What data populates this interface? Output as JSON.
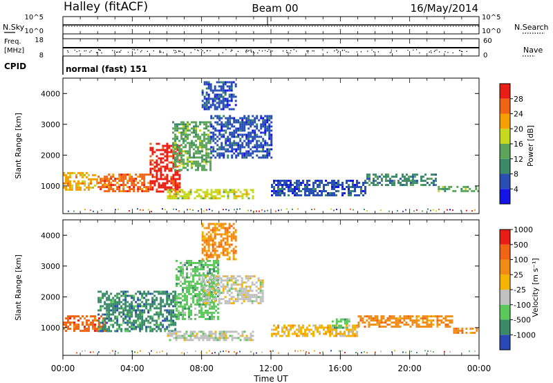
{
  "header": {
    "station": "Halley (fitACF)",
    "beam": "Beam 00",
    "date": "16/May/2014"
  },
  "side_labels": {
    "nsky": "N.Sky",
    "nsearch": "N.Search",
    "freq_line1": "Freq.",
    "freq_line2": "[MHz]",
    "nave": "Nave",
    "cpid": "CPID"
  },
  "cpid_text": "normal (fast) 151",
  "colors": {
    "power": [
      "#1414e6",
      "#2a4fb4",
      "#3a8a6a",
      "#5aa55a",
      "#c6d81e",
      "#f5a000",
      "#f06414",
      "#e81e14"
    ],
    "velocity": [
      "#2848b4",
      "#3a8a6a",
      "#5ac85a",
      "#c0c0c0",
      "#f5b400",
      "#f08c14",
      "#f06414",
      "#e81e14"
    ]
  },
  "chart_data": [
    {
      "type": "line",
      "name": "nsky-nsearch",
      "x": [
        0,
        24
      ],
      "xlim": [
        0,
        24
      ],
      "left_axis": {
        "ticks": [
          "10^5",
          "10^0"
        ]
      },
      "right_axis": {
        "ticks": [
          "10^5",
          "10^0"
        ]
      },
      "series": [
        {
          "name": "N.Sky",
          "x": [
            0,
            24
          ],
          "y": [
            100,
            100
          ]
        },
        {
          "name": "N.Search",
          "x": [
            0,
            24
          ],
          "y": [
            100,
            100
          ]
        }
      ],
      "spike_time": 11.8
    },
    {
      "type": "line",
      "name": "freq-nave",
      "xlim": [
        0,
        24
      ],
      "left_axis": {
        "ticks": [
          "18",
          "8"
        ],
        "range": [
          8,
          18
        ]
      },
      "right_axis": {
        "ticks": [
          "60",
          "0"
        ],
        "range": [
          0,
          60
        ]
      },
      "series": [
        {
          "name": "Freq.",
          "x": [
            0,
            24
          ],
          "y": [
            11.8,
            11.8
          ]
        }
      ]
    },
    {
      "type": "heatmap",
      "name": "power",
      "xlabel": "",
      "ylabel": "Slant Range [km]",
      "xlim": [
        0,
        24
      ],
      "ylim": [
        100,
        4500
      ],
      "yticks": [
        1000,
        2000,
        3000,
        4000
      ],
      "colorbar": {
        "label": "Power [dB]",
        "ticks": [
          "4",
          "8",
          "12",
          "16",
          "20",
          "24",
          "28"
        ]
      },
      "regions": [
        {
          "t": [
            0,
            2.0
          ],
          "r": [
            900,
            1450
          ],
          "level": 5
        },
        {
          "t": [
            2.0,
            5.0
          ],
          "r": [
            800,
            1400
          ],
          "level": 6
        },
        {
          "t": [
            5.0,
            6.7
          ],
          "r": [
            850,
            2400
          ],
          "level": 7
        },
        {
          "t": [
            6.3,
            8.5
          ],
          "r": [
            1500,
            3100
          ],
          "level": 3
        },
        {
          "t": [
            8.5,
            12.0
          ],
          "r": [
            1900,
            3300
          ],
          "level": 1
        },
        {
          "t": [
            8.0,
            10.0
          ],
          "r": [
            3500,
            4400
          ],
          "level": 1
        },
        {
          "t": [
            12.0,
            17.5
          ],
          "r": [
            700,
            1200
          ],
          "level": 1
        },
        {
          "t": [
            17.5,
            21.5
          ],
          "r": [
            1000,
            1400
          ],
          "level": 2
        },
        {
          "t": [
            21.5,
            24.0
          ],
          "r": [
            800,
            1000
          ],
          "level": 3
        },
        {
          "t": [
            6.0,
            11.0
          ],
          "r": [
            600,
            900
          ],
          "level": 4
        }
      ]
    },
    {
      "type": "heatmap",
      "name": "velocity",
      "xlabel": "Time UT",
      "ylabel": "Slant Range [km]",
      "xlim": [
        0,
        24
      ],
      "ylim": [
        100,
        4500
      ],
      "yticks": [
        1000,
        2000,
        3000,
        4000
      ],
      "xticks": [
        "00:00",
        "04:00",
        "08:00",
        "12:00",
        "16:00",
        "20:00",
        "00:00"
      ],
      "colorbar": {
        "label": "Velocity [m s⁻¹]",
        "ticks": [
          "-1000",
          "-500",
          "-100",
          "-25",
          "25",
          "100",
          "500",
          "1000"
        ]
      },
      "regions": [
        {
          "t": [
            0,
            2.5
          ],
          "r": [
            900,
            1400
          ],
          "level": 6
        },
        {
          "t": [
            2.0,
            6.5
          ],
          "r": [
            900,
            2200
          ],
          "level": 1
        },
        {
          "t": [
            6.5,
            9.0
          ],
          "r": [
            1300,
            3200
          ],
          "level": 2
        },
        {
          "t": [
            8.0,
            11.5
          ],
          "r": [
            1800,
            2700
          ],
          "level": 3
        },
        {
          "t": [
            8.0,
            10.0
          ],
          "r": [
            3200,
            4400
          ],
          "level": 5
        },
        {
          "t": [
            12.0,
            17.0
          ],
          "r": [
            700,
            1100
          ],
          "level": 4
        },
        {
          "t": [
            15.5,
            16.5
          ],
          "r": [
            1000,
            1300
          ],
          "level": 2
        },
        {
          "t": [
            17.0,
            22.5
          ],
          "r": [
            1000,
            1400
          ],
          "level": 5
        },
        {
          "t": [
            22.5,
            24.0
          ],
          "r": [
            800,
            1000
          ],
          "level": 5
        },
        {
          "t": [
            6.0,
            11.0
          ],
          "r": [
            600,
            900
          ],
          "level": 3
        }
      ]
    }
  ]
}
